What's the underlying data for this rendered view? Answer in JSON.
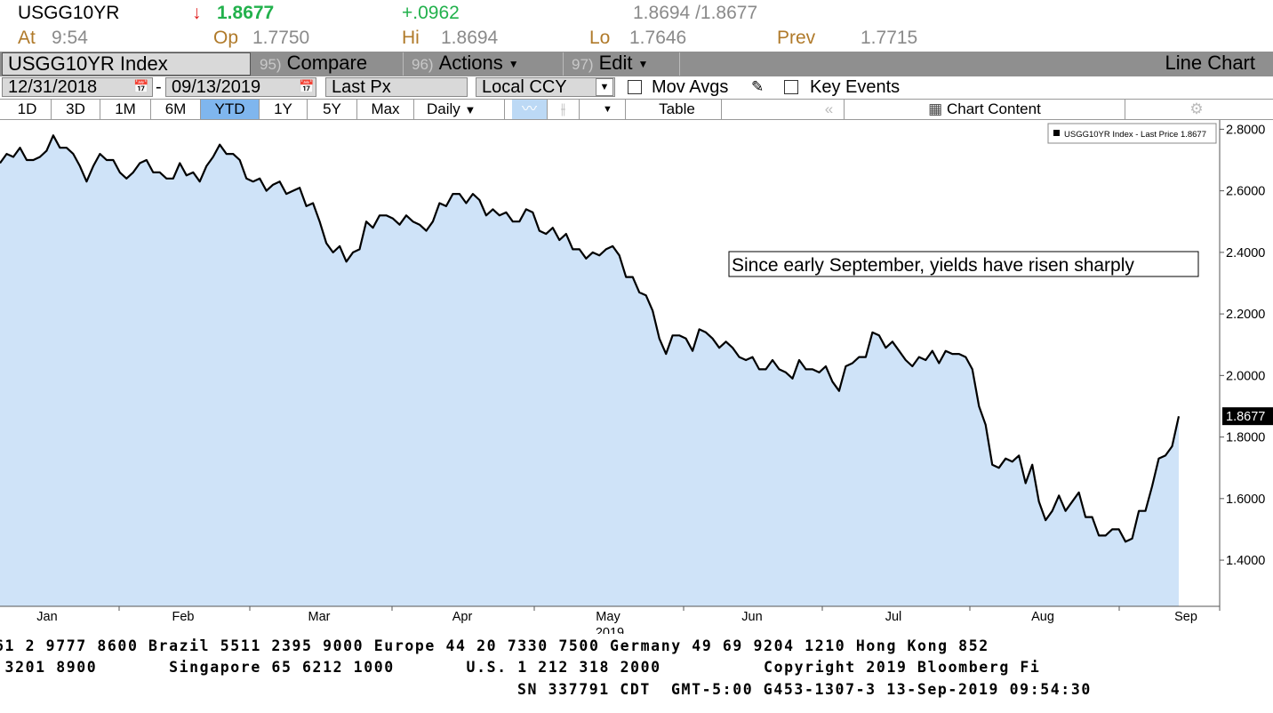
{
  "quote": {
    "ticker": "USGG10YR",
    "arrow": "↓",
    "last": "1.8677",
    "change": "+.0962",
    "bid_ask": "1.8694 /1.8677",
    "at_label": "At",
    "time": "9:54",
    "open_label": "Op",
    "open": "1.7750",
    "high_label": "Hi",
    "high": "1.8694",
    "low_label": "Lo",
    "low": "1.7646",
    "prev_label": "Prev",
    "prev": "1.7715"
  },
  "toolbar": {
    "security": "USGG10YR Index",
    "compare_num": "95)",
    "compare_label": "Compare",
    "actions_num": "96)",
    "actions_label": "Actions",
    "edit_num": "97)",
    "edit_label": "Edit",
    "chart_type": "Line Chart"
  },
  "settings": {
    "start_date": "12/31/2018",
    "date_sep": "-",
    "end_date": "09/13/2019",
    "field": "Last Px",
    "currency": "Local CCY",
    "mov_avgs": "Mov Avgs",
    "key_events": "Key Events"
  },
  "periods": [
    "1D",
    "3D",
    "1M",
    "6M",
    "YTD",
    "1Y",
    "5Y",
    "Max"
  ],
  "active_period": "YTD",
  "frequency": "Daily",
  "table_label": "Table",
  "chart_content_label": "Chart Content",
  "icons": {
    "calendar": "calendar-icon",
    "pencil": "pencil-icon",
    "chart_content": "chart-icon",
    "settings": "gear-icon",
    "collapse": "double-chevron-left-icon"
  },
  "colors": {
    "line": "#000000",
    "fill": "#cfe3f8",
    "active": "#7fb6ee",
    "up": "#22b14c",
    "down": "#e02020"
  },
  "chart_data": {
    "type": "area",
    "title": "",
    "legend": "USGG10YR Index - Last Price 1.8677",
    "legend_position": "top-right",
    "annotation": "Since early September, yields have risen sharply",
    "last_value_label": "1.8677",
    "ylim": [
      1.25,
      2.83
    ],
    "yticks": [
      "2.8000",
      "2.6000",
      "2.4000",
      "2.2000",
      "2.0000",
      "1.8000",
      "1.6000",
      "1.4000"
    ],
    "xticks": [
      "Jan",
      "Feb",
      "Mar",
      "Apr",
      "May",
      "Jun",
      "Jul",
      "Aug",
      "Sep"
    ],
    "year_label": "2019",
    "grid": false,
    "series": [
      {
        "values": [
          2.69,
          2.72,
          2.71,
          2.74,
          2.7,
          2.7,
          2.71,
          2.73,
          2.78,
          2.74,
          2.74,
          2.72,
          2.68,
          2.63,
          2.68,
          2.72,
          2.7,
          2.7,
          2.66,
          2.64,
          2.66,
          2.69,
          2.7,
          2.66,
          2.66,
          2.64,
          2.64,
          2.69,
          2.65,
          2.66,
          2.63,
          2.68,
          2.71,
          2.75,
          2.72,
          2.72,
          2.7,
          2.64,
          2.63,
          2.64,
          2.6,
          2.62,
          2.63,
          2.59,
          2.6,
          2.61,
          2.55,
          2.56,
          2.5,
          2.43,
          2.4,
          2.42,
          2.37,
          2.4,
          2.41,
          2.5,
          2.48,
          2.52,
          2.52,
          2.51,
          2.49,
          2.52,
          2.5,
          2.49,
          2.47,
          2.5,
          2.56,
          2.55,
          2.59,
          2.59,
          2.56,
          2.59,
          2.57,
          2.52,
          2.54,
          2.52,
          2.53,
          2.5,
          2.5,
          2.54,
          2.53,
          2.47,
          2.46,
          2.48,
          2.44,
          2.46,
          2.41,
          2.41,
          2.38,
          2.4,
          2.39,
          2.41,
          2.42,
          2.39,
          2.32,
          2.32,
          2.27,
          2.26,
          2.21,
          2.12,
          2.07,
          2.13,
          2.13,
          2.12,
          2.08,
          2.15,
          2.14,
          2.12,
          2.09,
          2.11,
          2.09,
          2.06,
          2.05,
          2.06,
          2.02,
          2.02,
          2.05,
          2.02,
          2.01,
          1.99,
          2.05,
          2.02,
          2.02,
          2.01,
          2.03,
          1.98,
          1.95,
          2.03,
          2.04,
          2.06,
          2.06,
          2.14,
          2.13,
          2.09,
          2.11,
          2.08,
          2.05,
          2.03,
          2.06,
          2.05,
          2.08,
          2.04,
          2.08,
          2.07,
          2.07,
          2.06,
          2.02,
          1.9,
          1.84,
          1.71,
          1.7,
          1.73,
          1.72,
          1.74,
          1.65,
          1.71,
          1.59,
          1.53,
          1.56,
          1.61,
          1.56,
          1.59,
          1.62,
          1.54,
          1.54,
          1.48,
          1.48,
          1.5,
          1.5,
          1.46,
          1.47,
          1.56,
          1.56,
          1.64,
          1.73,
          1.74,
          1.77,
          1.8677
        ]
      }
    ]
  },
  "footer": {
    "line1": "61 2 9777 8600 Brazil 5511 2395 9000 Europe 44 20 7330 7500 Germany 49 69 9204 1210 Hong Kong 852",
    "line2": " 3201 8900       Singapore 65 6212 1000       U.S. 1 212 318 2000          Copyright 2019 Bloomberg Fi",
    "line3": "SN 337791 CDT  GMT-5:00 G453-1307-3 13-Sep-2019 09:54:30"
  }
}
